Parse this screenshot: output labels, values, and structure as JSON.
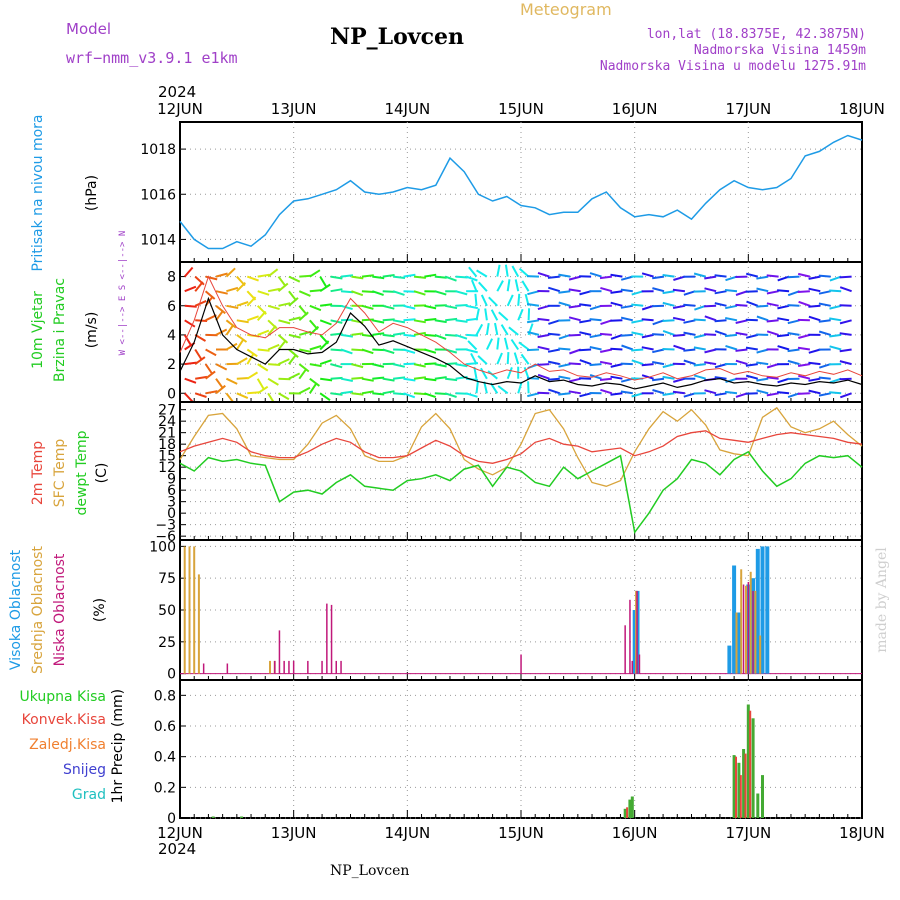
{
  "header": {
    "model_label": "Model",
    "model_name": "wrf−nmm_v3.9.1  e1km",
    "station": "NP_Lovcen",
    "product": "Meteogram",
    "lonlat": "lon,lat (18.8375E, 42.3875N)",
    "elevation": "Nadmorska Visina 1459m",
    "model_elevation": "Nadmorska Visina u modelu 1275.91m",
    "year_top": "2024",
    "year_bottom": "2024",
    "footer_station": "NP_Lovcen",
    "credit": "made by Angel"
  },
  "colors": {
    "pressure": "#1e9be6",
    "temp2m": "#e8463c",
    "sfc": "#d8a43c",
    "dew": "#22cc22",
    "high_cloud": "#1e9be6",
    "mid_cloud": "#d8a43c",
    "low_cloud": "#c0187a",
    "precip_total": "#44aa33",
    "precip_conv": "#e8463c",
    "precip_frz": "#f08030",
    "snow": "#4040d0",
    "hail": "#20c0c0",
    "header_purple": "#a040c8",
    "header_gold": "#e0b860"
  },
  "days": [
    "12JUN",
    "13JUN",
    "14JUN",
    "15JUN",
    "16JUN",
    "17JUN",
    "18JUN"
  ],
  "chart_data": [
    {
      "type": "line",
      "name": "pressure-panel",
      "ylabel": [
        "Pritisak na nivou mora",
        "(hPa)"
      ],
      "ylim": [
        1013.0,
        1019.2
      ],
      "yticks": [
        1014,
        1016,
        1018
      ],
      "x_unit": "hours since 12JUN 00",
      "series": [
        {
          "name": "",
          "x": [
            0,
            3,
            6,
            9,
            12,
            15,
            18,
            21,
            24,
            27,
            30,
            33,
            36,
            39,
            42,
            45,
            48,
            51,
            54,
            57,
            60,
            63,
            66,
            69,
            72,
            75,
            78,
            81,
            84,
            87,
            90,
            93,
            96,
            99,
            102,
            105,
            108,
            111,
            114,
            117,
            120,
            123,
            126,
            129,
            132,
            135,
            138,
            141,
            144
          ],
          "y": [
            1014.8,
            1014.0,
            1013.6,
            1013.6,
            1013.9,
            1013.7,
            1014.2,
            1015.1,
            1015.7,
            1015.8,
            1016.0,
            1016.2,
            1016.6,
            1016.1,
            1016.0,
            1016.1,
            1016.3,
            1016.2,
            1016.4,
            1017.6,
            1017.0,
            1016.0,
            1015.7,
            1015.9,
            1015.5,
            1015.4,
            1015.1,
            1015.2,
            1015.2,
            1015.8,
            1016.1,
            1015.4,
            1015.0,
            1015.1,
            1015.0,
            1015.3,
            1014.9,
            1015.6,
            1016.2,
            1016.6,
            1016.3,
            1016.2,
            1016.3,
            1016.7,
            1017.7,
            1017.9,
            1018.3,
            1018.6,
            1018.4
          ]
        }
      ]
    },
    {
      "type": "line",
      "name": "wind-panel",
      "ylabel": [
        "10m Vjetar",
        "Brzina i Pravac",
        "(m/s)"
      ],
      "compass": "W <--|--> E   S <--|--> N",
      "ylim": [
        -0.6,
        9.0
      ],
      "yticks": [
        0,
        2,
        4,
        6,
        8
      ],
      "series": [
        {
          "name": "speed",
          "x": [
            0,
            3,
            6,
            9,
            12,
            15,
            18,
            21,
            24,
            27,
            30,
            33,
            36,
            39,
            42,
            45,
            48,
            51,
            54,
            57,
            60,
            63,
            66,
            69,
            72,
            75,
            78,
            81,
            84,
            87,
            90,
            93,
            96,
            99,
            102,
            105,
            108,
            111,
            114,
            117,
            120,
            123,
            126,
            129,
            132,
            135,
            138,
            141,
            144
          ],
          "y": [
            1.5,
            3.5,
            6.5,
            4.0,
            3.0,
            2.5,
            2.0,
            3.0,
            3.0,
            2.7,
            2.8,
            3.5,
            5.5,
            4.6,
            3.3,
            3.6,
            3.2,
            2.8,
            2.4,
            1.9,
            1.1,
            0.8,
            0.6,
            0.8,
            0.7,
            1.2,
            0.8,
            0.9,
            0.6,
            0.5,
            0.7,
            0.6,
            0.3,
            0.5,
            0.7,
            0.4,
            0.6,
            0.9,
            1.0,
            0.7,
            0.8,
            0.6,
            0.5,
            0.7,
            0.6,
            0.8,
            0.7,
            0.9,
            0.6
          ]
        },
        {
          "name": "gust",
          "x": [
            0,
            3,
            6,
            9,
            12,
            15,
            18,
            21,
            24,
            27,
            30,
            33,
            36,
            39,
            42,
            45,
            48,
            51,
            54,
            57,
            60,
            63,
            66,
            69,
            72,
            75,
            78,
            81,
            84,
            87,
            90,
            93,
            96,
            99,
            102,
            105,
            108,
            111,
            114,
            117,
            120,
            123,
            126,
            129,
            132,
            135,
            138,
            141,
            144
          ],
          "y": [
            2.8,
            5.0,
            8.0,
            6.0,
            4.5,
            4.0,
            3.8,
            4.5,
            4.5,
            4.2,
            4.0,
            4.8,
            6.5,
            5.5,
            4.2,
            4.8,
            4.5,
            4.0,
            3.5,
            2.8,
            2.0,
            1.6,
            1.3,
            1.6,
            1.4,
            2.0,
            1.5,
            1.6,
            1.2,
            1.1,
            1.4,
            1.2,
            0.9,
            1.1,
            1.4,
            1.0,
            1.2,
            1.6,
            1.7,
            1.3,
            1.5,
            1.2,
            1.1,
            1.4,
            1.2,
            1.5,
            1.3,
            1.6,
            1.2
          ]
        }
      ]
    },
    {
      "type": "line",
      "name": "temperature-panel",
      "ylabel": [
        "2m Temp",
        "SFC Temp",
        "dewpt Temp",
        "(C)"
      ],
      "ylim": [
        -7,
        29
      ],
      "yticks": [
        -6,
        -3,
        0,
        3,
        6,
        9,
        12,
        15,
        18,
        21,
        24,
        27
      ],
      "series": [
        {
          "name": "2m Temp",
          "x": [
            0,
            3,
            6,
            9,
            12,
            15,
            18,
            21,
            24,
            27,
            30,
            33,
            36,
            39,
            42,
            45,
            48,
            51,
            54,
            57,
            60,
            63,
            66,
            69,
            72,
            75,
            78,
            81,
            84,
            87,
            90,
            93,
            96,
            99,
            102,
            105,
            108,
            111,
            114,
            117,
            120,
            123,
            126,
            129,
            132,
            135,
            138,
            141,
            144
          ],
          "y": [
            16.0,
            17.5,
            18.5,
            19.5,
            18.5,
            16.0,
            15.0,
            14.5,
            14.5,
            16.0,
            18.0,
            19.5,
            18.5,
            16.0,
            14.5,
            14.5,
            15.0,
            17.0,
            19.0,
            17.5,
            15.0,
            13.5,
            13.0,
            14.0,
            15.5,
            18.5,
            19.5,
            18.0,
            17.5,
            16.0,
            16.5,
            17.0,
            15.0,
            16.0,
            17.5,
            20.0,
            21.0,
            21.5,
            19.5,
            19.0,
            18.5,
            19.5,
            20.5,
            21.0,
            20.5,
            20.0,
            19.5,
            18.5,
            18.0
          ]
        },
        {
          "name": "SFC Temp",
          "x": [
            0,
            3,
            6,
            9,
            12,
            15,
            18,
            21,
            24,
            27,
            30,
            33,
            36,
            39,
            42,
            45,
            48,
            51,
            54,
            57,
            60,
            63,
            66,
            69,
            72,
            75,
            78,
            81,
            84,
            87,
            90,
            93,
            96,
            99,
            102,
            105,
            108,
            111,
            114,
            117,
            120,
            123,
            126,
            129,
            132,
            135,
            138,
            141,
            144
          ],
          "y": [
            14.0,
            20.0,
            25.5,
            26.0,
            22.0,
            15.0,
            14.5,
            14.0,
            14.0,
            18.0,
            23.5,
            25.5,
            22.0,
            15.0,
            13.5,
            13.5,
            15.0,
            22.5,
            26.0,
            22.0,
            14.0,
            11.5,
            10.0,
            12.0,
            18.0,
            26.0,
            27.0,
            22.0,
            14.5,
            8.0,
            7.0,
            8.5,
            16.0,
            22.0,
            26.5,
            24.0,
            27.0,
            23.0,
            16.5,
            15.5,
            15.0,
            25.0,
            27.5,
            22.5,
            21.0,
            22.0,
            24.0,
            20.5,
            17.5
          ]
        },
        {
          "name": "dewpt Temp",
          "x": [
            0,
            3,
            6,
            9,
            12,
            15,
            18,
            21,
            24,
            27,
            30,
            33,
            36,
            39,
            42,
            45,
            48,
            51,
            54,
            57,
            60,
            63,
            66,
            69,
            72,
            75,
            78,
            81,
            84,
            87,
            90,
            93,
            96,
            99,
            102,
            105,
            108,
            111,
            114,
            117,
            120,
            123,
            126,
            129,
            132,
            135,
            138,
            141,
            144
          ],
          "y": [
            13.0,
            11.0,
            14.5,
            13.5,
            14.0,
            13.0,
            12.5,
            3.0,
            5.5,
            6.0,
            5.0,
            8.0,
            10.0,
            7.0,
            6.5,
            6.0,
            8.5,
            9.0,
            10.0,
            8.5,
            11.5,
            12.5,
            7.0,
            12.0,
            11.0,
            8.0,
            7.0,
            12.0,
            9.0,
            11.0,
            13.0,
            15.0,
            -5.0,
            0.0,
            6.0,
            9.0,
            14.0,
            13.0,
            10.0,
            14.0,
            16.0,
            11.0,
            7.0,
            9.0,
            13.0,
            15.0,
            14.5,
            15.0,
            12.0
          ]
        }
      ]
    },
    {
      "type": "bar",
      "name": "cloud-panel",
      "ylabel": [
        "Visoka Oblacnost",
        "Srednja Oblacnost",
        "Niska Oblacnost",
        "(%)"
      ],
      "ylim": [
        -5,
        105
      ],
      "yticks": [
        0,
        25,
        50,
        75,
        100
      ],
      "series": [
        {
          "name": "Visoka Oblacnost",
          "x": [
            96,
            96.6,
            116,
            117,
            118,
            120,
            121,
            122,
            123,
            124
          ],
          "y": [
            50,
            65,
            22,
            85,
            48,
            70,
            75,
            98,
            100,
            100
          ]
        },
        {
          "name": "Srednja Oblacnost",
          "x": [
            1,
            2,
            3,
            4,
            19,
            20,
            96.3,
            117.5,
            118.5,
            119.5,
            120.5,
            121.5,
            122.5
          ],
          "y": [
            100,
            100,
            100,
            78,
            10,
            10,
            65,
            48,
            82,
            69,
            80,
            65,
            30
          ]
        },
        {
          "name": "Niska Oblacnost",
          "x": [
            5,
            10,
            20,
            21,
            22,
            23,
            24,
            27,
            30,
            31,
            32,
            33,
            34,
            72,
            94,
            95,
            95.5,
            96.5,
            97,
            119,
            120,
            121
          ],
          "y": [
            8,
            8,
            10,
            34,
            10,
            10,
            10,
            10,
            10,
            55,
            54,
            10,
            10,
            15,
            38,
            58,
            10,
            65,
            15,
            70,
            72,
            65
          ]
        }
      ]
    },
    {
      "type": "bar",
      "name": "precip-panel",
      "ylabel": [
        "1hr Precip",
        "(mm)"
      ],
      "ylim": [
        0,
        0.9
      ],
      "yticks": [
        0,
        0.2,
        0.4,
        0.6,
        0.8
      ],
      "legend": [
        "Ukupna Kisa",
        "Konvek.Kisa",
        "Zaledj.Kisa",
        "Snijeg",
        "Grad"
      ],
      "series": [
        {
          "name": "Ukupna Kisa",
          "x": [
            7,
            13,
            94,
            95,
            95.5,
            117,
            118,
            119,
            120,
            121,
            122,
            123
          ],
          "y": [
            0.01,
            0.01,
            0.06,
            0.12,
            0.14,
            0.41,
            0.36,
            0.45,
            0.74,
            0.65,
            0.16,
            0.28
          ]
        },
        {
          "name": "Konvek.Kisa",
          "x": [
            94.4,
            117.4,
            118.4,
            119.4,
            120.4
          ],
          "y": [
            0.07,
            0.4,
            0.28,
            0.42,
            0.7
          ]
        }
      ]
    }
  ]
}
